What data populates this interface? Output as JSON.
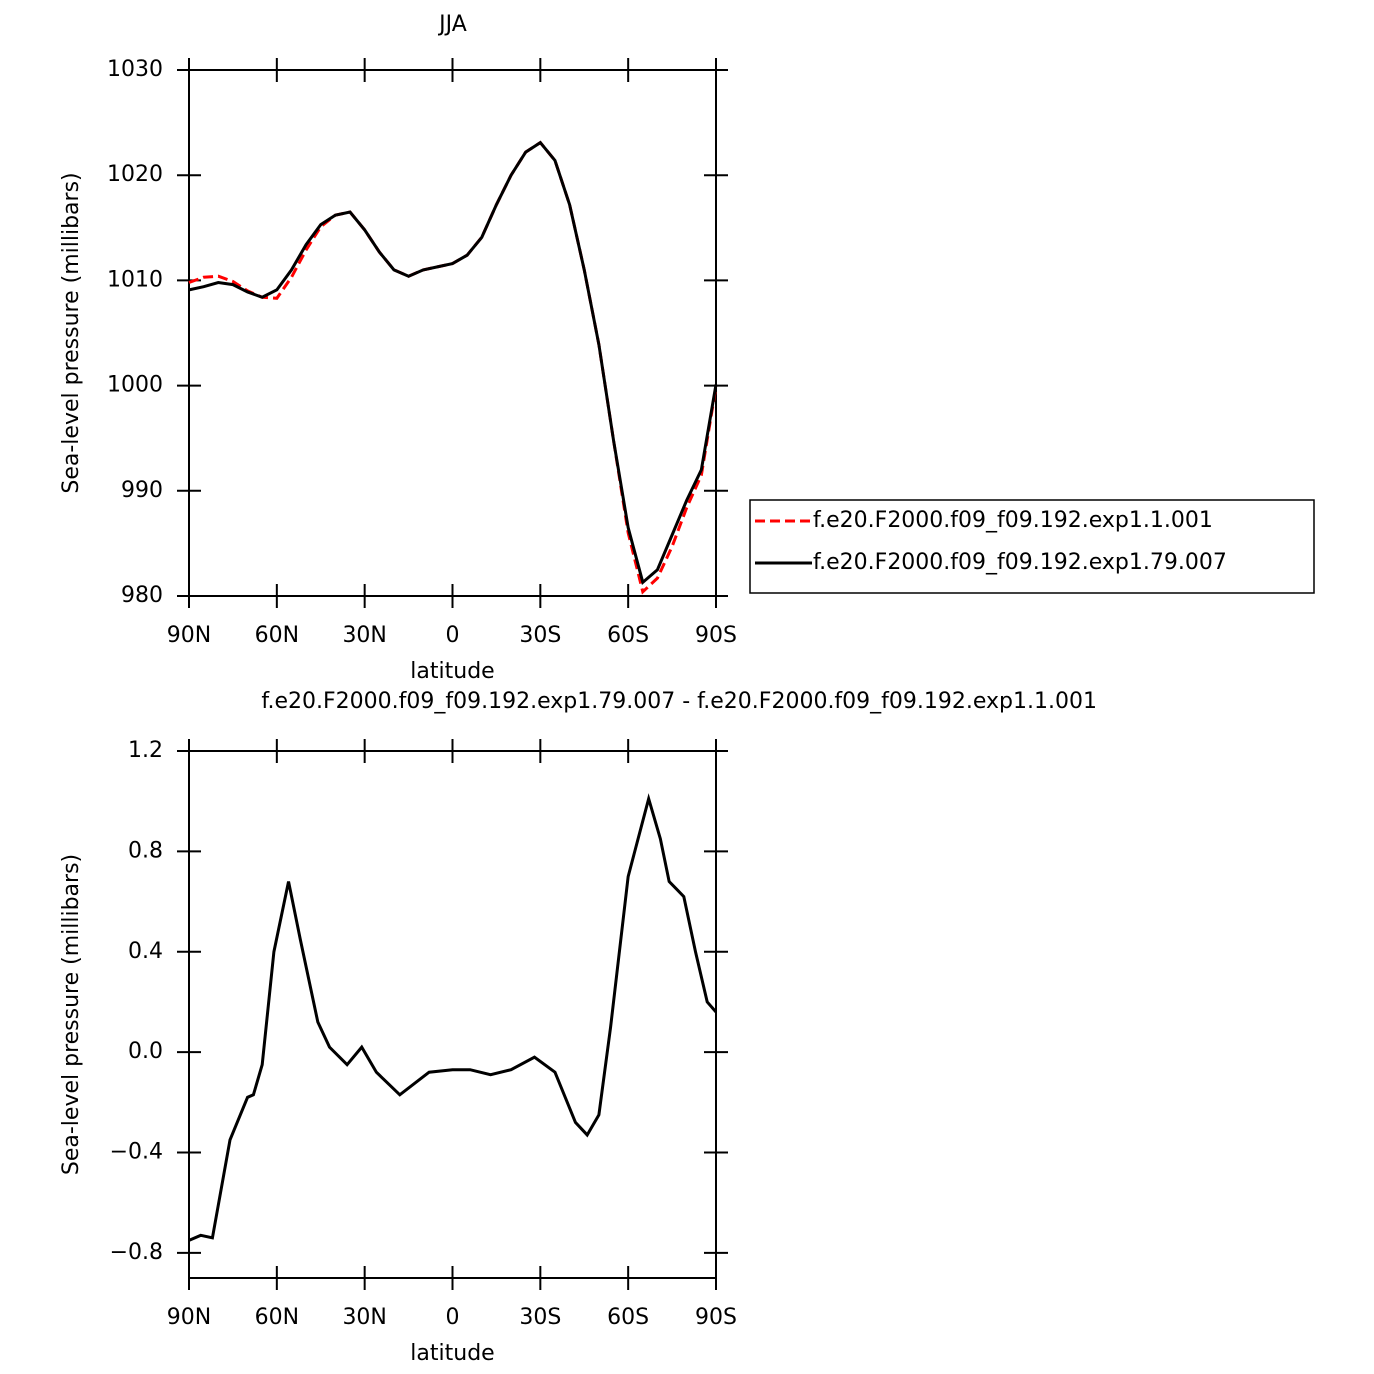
{
  "chart_data": [
    {
      "type": "line",
      "title": "JJA",
      "xlabel": "latitude",
      "ylabel": "Sea-level pressure (millibars)",
      "x": [
        90,
        85,
        80,
        75,
        70,
        65,
        60,
        55,
        50,
        45,
        40,
        35,
        30,
        25,
        20,
        15,
        10,
        5,
        0,
        -5,
        -10,
        -15,
        -20,
        -25,
        -30,
        -35,
        -40,
        -45,
        -50,
        -55,
        -60,
        -65,
        -70,
        -75,
        -80,
        -85,
        -90
      ],
      "series": [
        {
          "name": "f.e20.F2000.f09_f09.192.exp1.1.001",
          "color": "#ff0000",
          "dash": true,
          "values": [
            1009.8,
            1010.3,
            1010.4,
            1009.9,
            1009.0,
            1008.4,
            1008.3,
            1010.3,
            1012.9,
            1015.1,
            1016.2,
            1016.5,
            1014.8,
            1012.7,
            1011.0,
            1010.4,
            1011.0,
            1011.3,
            1011.6,
            1012.4,
            1014.1,
            1017.2,
            1020.0,
            1022.2,
            1023.1,
            1021.4,
            1017.2,
            1011.0,
            1003.9,
            994.8,
            986.0,
            980.4,
            981.7,
            984.7,
            988.4,
            991.5,
            999.9
          ]
        },
        {
          "name": "f.e20.F2000.f09_f09.192.exp1.79.007",
          "color": "#000000",
          "dash": false,
          "values": [
            1009.1,
            1009.4,
            1009.8,
            1009.6,
            1008.9,
            1008.4,
            1009.1,
            1011.0,
            1013.4,
            1015.3,
            1016.2,
            1016.5,
            1014.8,
            1012.7,
            1011.0,
            1010.4,
            1011.0,
            1011.3,
            1011.6,
            1012.4,
            1014.1,
            1017.2,
            1020.0,
            1022.2,
            1023.1,
            1021.4,
            1017.2,
            1011.0,
            1003.9,
            994.8,
            986.5,
            981.3,
            982.5,
            985.8,
            989.1,
            992.0,
            1000.1
          ]
        }
      ],
      "xlim": [
        90,
        -90
      ],
      "ylim": [
        980,
        1030
      ],
      "xticks": [
        {
          "value": 90,
          "label": "90N"
        },
        {
          "value": 60,
          "label": "60N"
        },
        {
          "value": 30,
          "label": "30N"
        },
        0,
        {
          "value": -30,
          "label": "30S"
        },
        {
          "value": -60,
          "label": "60S"
        },
        {
          "value": -90,
          "label": "90S"
        }
      ],
      "yticks": [
        980,
        990,
        1000,
        1010,
        1020,
        1030
      ],
      "legend": "right"
    },
    {
      "type": "line",
      "title": "f.e20.F2000.f09_f09.192.exp1.79.007 - f.e20.F2000.f09_f09.192.exp1.1.001",
      "xlabel": "latitude",
      "ylabel": "Sea-level pressure (millibars)",
      "x": [
        90,
        86,
        82,
        76,
        70,
        68,
        65,
        61,
        56,
        52,
        46,
        42,
        36,
        31,
        26,
        18,
        8,
        0,
        -6,
        -13,
        -20,
        -28,
        -35,
        -42,
        -46,
        -50,
        -54,
        -60,
        -67,
        -71,
        -74,
        -79,
        -83,
        -87,
        -90
      ],
      "series": [
        {
          "color": "#000000",
          "dash": false,
          "values": [
            -0.75,
            -0.73,
            -0.74,
            -0.35,
            -0.18,
            -0.17,
            -0.05,
            0.4,
            0.68,
            0.45,
            0.12,
            0.02,
            -0.05,
            0.02,
            -0.08,
            -0.17,
            -0.08,
            -0.07,
            -0.07,
            -0.09,
            -0.07,
            -0.02,
            -0.08,
            -0.28,
            -0.33,
            -0.25,
            0.1,
            0.7,
            1.01,
            0.85,
            0.68,
            0.62,
            0.4,
            0.2,
            0.16
          ]
        }
      ],
      "xlim": [
        90,
        -90
      ],
      "ylim": [
        -0.9,
        1.2
      ],
      "xticks": [
        {
          "value": 90,
          "label": "90N"
        },
        {
          "value": 60,
          "label": "60N"
        },
        {
          "value": 30,
          "label": "30N"
        },
        0,
        {
          "value": -30,
          "label": "30S"
        },
        {
          "value": -60,
          "label": "60S"
        },
        {
          "value": -90,
          "label": "90S"
        }
      ],
      "yticks": [
        {
          "value": -0.8,
          "label": "−0.8"
        },
        {
          "value": -0.4,
          "label": "−0.4"
        },
        {
          "value": 0,
          "label": "0.0"
        },
        0.4,
        0.8,
        1.2
      ]
    }
  ]
}
